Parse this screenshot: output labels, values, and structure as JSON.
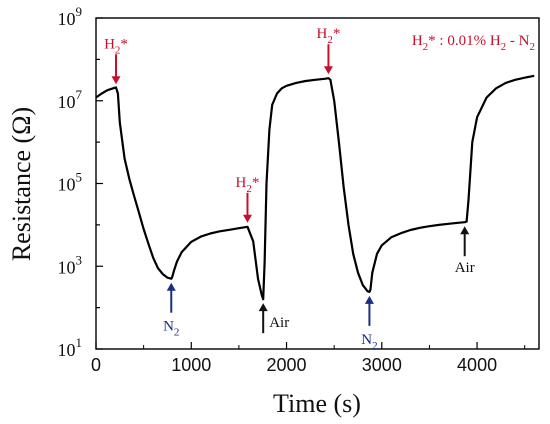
{
  "chart_data": {
    "type": "line",
    "xlabel": "Time (s)",
    "ylabel": "Resistance (Ω)",
    "x_scale": "linear",
    "y_scale": "log",
    "xlim": [
      0,
      4650
    ],
    "ylim": [
      10,
      1000000000
    ],
    "x_ticks": [
      0,
      1000,
      2000,
      3000,
      4000
    ],
    "y_tick_exponents": [
      1,
      3,
      5,
      7,
      9
    ],
    "y_tick_base": "10",
    "grid": false,
    "series": [
      {
        "color": "#000000",
        "x": [
          0,
          60,
          120,
          180,
          210,
          230,
          250,
          300,
          350,
          400,
          450,
          500,
          550,
          600,
          650,
          700,
          750,
          790,
          800,
          820,
          850,
          900,
          1000,
          1100,
          1200,
          1300,
          1400,
          1500,
          1590,
          1650,
          1700,
          1740,
          1755,
          1770,
          1790,
          1820,
          1850,
          1900,
          1950,
          2000,
          2100,
          2200,
          2300,
          2400,
          2440,
          2460,
          2500,
          2550,
          2600,
          2650,
          2700,
          2750,
          2800,
          2850,
          2870,
          2880,
          2900,
          2950,
          3000,
          3100,
          3200,
          3300,
          3400,
          3500,
          3600,
          3700,
          3800,
          3870,
          3890,
          3910,
          3950,
          4000,
          4100,
          4200,
          4300,
          4400,
          4500,
          4600
        ],
        "y": [
          12000000,
          15000000,
          18000000,
          20000000,
          21000000,
          15000000,
          3000000,
          400000,
          130000,
          50000,
          20000,
          8000,
          3500,
          1600,
          900,
          650,
          530,
          500,
          550,
          800,
          1300,
          2200,
          3900,
          5200,
          6200,
          7000,
          7600,
          8300,
          9000,
          4000,
          500,
          200,
          160,
          1200,
          100000,
          2000000,
          8000000,
          15000000,
          20000000,
          23000000,
          27000000,
          30000000,
          32000000,
          34000000,
          35000000,
          32000000,
          10000000,
          1000000,
          80000,
          10000,
          2000,
          700,
          350,
          250,
          240,
          270,
          700,
          2000,
          3200,
          5000,
          6300,
          7500,
          8500,
          9300,
          10000,
          10600,
          11200,
          11600,
          12000,
          40000,
          1000000,
          4000000,
          12000000,
          20000000,
          27000000,
          32000000,
          36000000,
          40000000
        ]
      }
    ],
    "annotations": [
      {
        "id": "h2_1",
        "label": "H",
        "sub": "2",
        "suffix": "*",
        "color": "#c8102e",
        "x": 210,
        "y": 20000000,
        "direction": "down",
        "text_side": "above"
      },
      {
        "id": "n2_1",
        "label": "N",
        "sub": "2",
        "suffix": "",
        "color": "#1b2d86",
        "x": 790,
        "y": 500,
        "direction": "up",
        "text_side": "below"
      },
      {
        "id": "h2_2",
        "label": "H",
        "sub": "2",
        "suffix": "*",
        "color": "#c8102e",
        "x": 1590,
        "y": 9000,
        "direction": "down",
        "text_side": "above"
      },
      {
        "id": "air_1",
        "label": "Air",
        "sub": "",
        "suffix": "",
        "color": "#111111",
        "x": 1755,
        "y": 160,
        "direction": "up",
        "text_side": "below-right"
      },
      {
        "id": "h2_3",
        "label": "H",
        "sub": "2",
        "suffix": "*",
        "color": "#c8102e",
        "x": 2440,
        "y": 35000000,
        "direction": "down",
        "text_side": "above"
      },
      {
        "id": "n2_2",
        "label": "N",
        "sub": "2",
        "suffix": "",
        "color": "#1b2d86",
        "x": 2870,
        "y": 240,
        "direction": "up",
        "text_side": "below"
      },
      {
        "id": "air_2",
        "label": "Air",
        "sub": "",
        "suffix": "",
        "color": "#111111",
        "x": 3870,
        "y": 11600,
        "direction": "up",
        "text_side": "below"
      }
    ],
    "legend_note": {
      "color": "#c8102e",
      "parts": [
        "H",
        "2",
        "* : 0.01% H",
        "2",
        " - N",
        "2"
      ]
    }
  }
}
